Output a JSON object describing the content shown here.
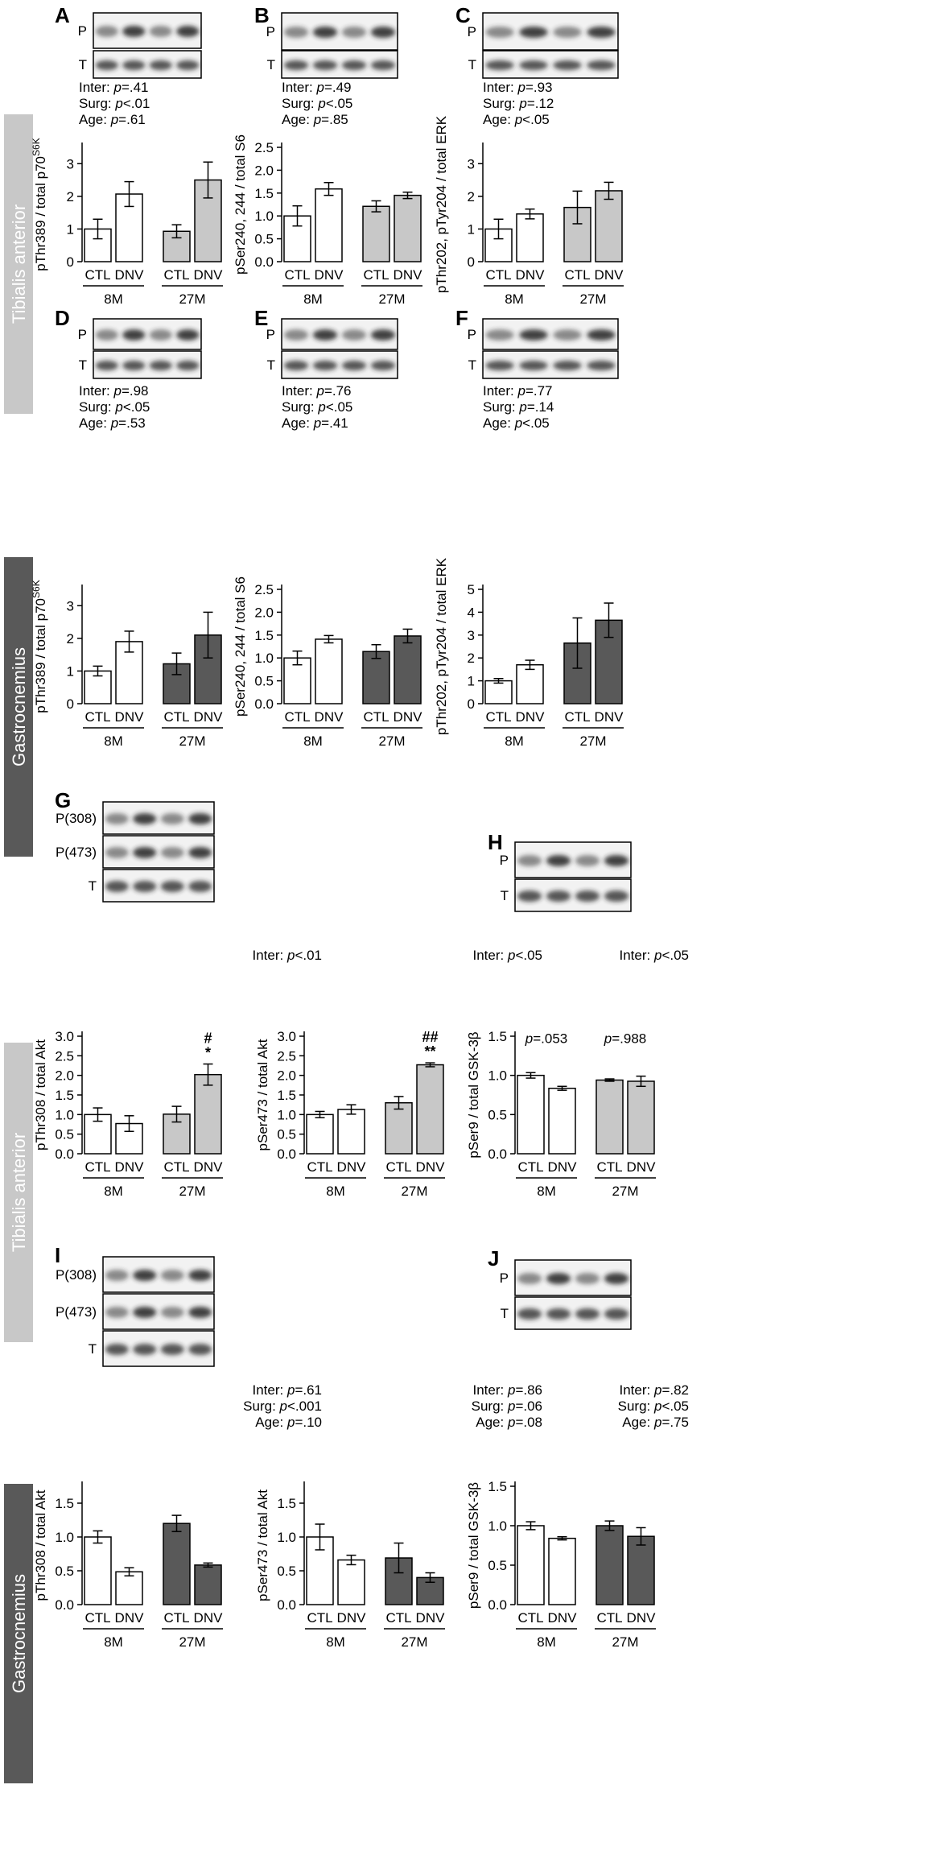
{
  "colors": {
    "ctl": "#ffffff",
    "ta_dnv_27": "#c8c8c8",
    "gas_dnv_27": "#595959",
    "ta_side": "#c8c8c8",
    "gas_side": "#595959"
  },
  "side_labels": {
    "ta_1": "Tibialis anterior",
    "gas_1": "Gastrocnemius",
    "ta_2": "Tibialis anterior",
    "gas_2": "Gastrocnemius"
  },
  "chart_data": [
    {
      "id": "A",
      "panel": "A",
      "type": "bar",
      "blot_labels": [
        "P",
        "T"
      ],
      "stats": [
        [
          "Inter: ",
          "p",
          "=.41"
        ],
        [
          "Surg: ",
          "p",
          "<.01"
        ],
        [
          "Age: ",
          "p",
          "=.61"
        ]
      ],
      "ylabel": "pThr389 / total p70",
      "ylabel_sup": "S6K",
      "ylim": [
        0,
        3.5
      ],
      "yticks": [
        "0",
        "1",
        "2",
        "3"
      ],
      "categories": [
        "CTL",
        "DNV",
        "CTL",
        "DNV"
      ],
      "groups": [
        "8M",
        "27M"
      ],
      "values": [
        1.0,
        2.07,
        0.93,
        2.5
      ],
      "errors": [
        0.3,
        0.38,
        0.2,
        0.55
      ],
      "annotations": [
        "",
        "",
        "",
        ""
      ]
    },
    {
      "id": "B",
      "panel": "B",
      "type": "bar",
      "blot_labels": [
        "P",
        "T"
      ],
      "stats": [
        [
          "Inter: ",
          "p",
          "=.49"
        ],
        [
          "Surg: ",
          "p",
          "<.05"
        ],
        [
          "Age: ",
          "p",
          "=.85"
        ]
      ],
      "ylabel": "pSer240, 244 / total S6",
      "ylabel_sup": "",
      "ylim": [
        0,
        2.5
      ],
      "yticks": [
        "0.0",
        "0.5",
        "1.0",
        "1.5",
        "2.0",
        "2.5"
      ],
      "categories": [
        "CTL",
        "DNV",
        "CTL",
        "DNV"
      ],
      "groups": [
        "8M",
        "27M"
      ],
      "values": [
        1.0,
        1.59,
        1.21,
        1.45
      ],
      "errors": [
        0.22,
        0.14,
        0.12,
        0.07
      ],
      "annotations": [
        "",
        "",
        "",
        ""
      ]
    },
    {
      "id": "C",
      "panel": "C",
      "type": "bar",
      "blot_labels": [
        "P",
        "T"
      ],
      "stats": [
        [
          "Inter: ",
          "p",
          "=.93"
        ],
        [
          "Surg: ",
          "p",
          "=.12"
        ],
        [
          "Age: ",
          "p",
          "<.05"
        ]
      ],
      "ylabel": "pThr202, pTyr204 / total ERK",
      "ylabel_sup": "",
      "ylim": [
        0,
        3.5
      ],
      "yticks": [
        "0",
        "1",
        "2",
        "3"
      ],
      "categories": [
        "CTL",
        "DNV",
        "CTL",
        "DNV"
      ],
      "groups": [
        "8M",
        "27M"
      ],
      "values": [
        1.0,
        1.46,
        1.66,
        2.17
      ],
      "errors": [
        0.3,
        0.15,
        0.5,
        0.26
      ],
      "annotations": [
        "",
        "",
        "",
        ""
      ]
    },
    {
      "id": "D",
      "panel": "D",
      "type": "bar",
      "blot_labels": [
        "P",
        "T"
      ],
      "stats": [
        [
          "Inter: ",
          "p",
          "=.98"
        ],
        [
          "Surg: ",
          "p",
          "<.05"
        ],
        [
          "Age: ",
          "p",
          "=.53"
        ]
      ],
      "ylabel": "pThr389 / total p70",
      "ylabel_sup": "S6K",
      "ylim": [
        0,
        3.5
      ],
      "yticks": [
        "0",
        "1",
        "2",
        "3"
      ],
      "categories": [
        "CTL",
        "DNV",
        "CTL",
        "DNV"
      ],
      "groups": [
        "8M",
        "27M"
      ],
      "values": [
        1.0,
        1.9,
        1.22,
        2.1
      ],
      "errors": [
        0.15,
        0.32,
        0.33,
        0.7
      ],
      "annotations": [
        "",
        "",
        "",
        ""
      ]
    },
    {
      "id": "E",
      "panel": "E",
      "type": "bar",
      "blot_labels": [
        "P",
        "T"
      ],
      "stats": [
        [
          "Inter: ",
          "p",
          "=.76"
        ],
        [
          "Surg: ",
          "p",
          "<.05"
        ],
        [
          "Age: ",
          "p",
          "=.41"
        ]
      ],
      "ylabel": "pSer240, 244 / total S6",
      "ylabel_sup": "",
      "ylim": [
        0,
        2.5
      ],
      "yticks": [
        "0.0",
        "0.5",
        "1.0",
        "1.5",
        "2.0",
        "2.5"
      ],
      "categories": [
        "CTL",
        "DNV",
        "CTL",
        "DNV"
      ],
      "groups": [
        "8M",
        "27M"
      ],
      "values": [
        1.0,
        1.41,
        1.14,
        1.48
      ],
      "errors": [
        0.15,
        0.08,
        0.15,
        0.15
      ],
      "annotations": [
        "",
        "",
        "",
        ""
      ]
    },
    {
      "id": "F",
      "panel": "F",
      "type": "bar",
      "blot_labels": [
        "P",
        "T"
      ],
      "stats": [
        [
          "Inter: ",
          "p",
          "=.77"
        ],
        [
          "Surg: ",
          "p",
          "=.14"
        ],
        [
          "Age: ",
          "p",
          "<.05"
        ]
      ],
      "ylabel": "pThr202, pTyr204 / total ERK",
      "ylabel_sup": "",
      "ylim": [
        0,
        5
      ],
      "yticks": [
        "0",
        "1",
        "2",
        "3",
        "4",
        "5"
      ],
      "categories": [
        "CTL",
        "DNV",
        "CTL",
        "DNV"
      ],
      "groups": [
        "8M",
        "27M"
      ],
      "values": [
        1.0,
        1.7,
        2.65,
        3.65
      ],
      "errors": [
        0.1,
        0.2,
        1.1,
        0.75
      ],
      "annotations": [
        "",
        "",
        "",
        ""
      ]
    },
    {
      "id": "G1",
      "panel": "G",
      "type": "bar",
      "blot_labels": [
        "P(308)",
        "P(473)",
        "T"
      ],
      "stats": [
        [
          "Inter: ",
          "p",
          "<.01"
        ]
      ],
      "ylabel": "pThr308 / total Akt",
      "ylabel_sup": "",
      "ylim": [
        0,
        3.0
      ],
      "yticks": [
        "0.0",
        "0.5",
        "1.0",
        "1.5",
        "2.0",
        "2.5",
        "3.0"
      ],
      "categories": [
        "CTL",
        "DNV",
        "CTL",
        "DNV"
      ],
      "groups": [
        "8M",
        "27M"
      ],
      "values": [
        1.0,
        0.77,
        1.01,
        2.02
      ],
      "errors": [
        0.17,
        0.2,
        0.2,
        0.27
      ],
      "annotations": [
        "",
        "",
        "",
        "#|*"
      ]
    },
    {
      "id": "G2",
      "panel": "",
      "type": "bar",
      "blot_labels": [],
      "stats": [
        [
          "Inter: ",
          "p",
          "<.05"
        ]
      ],
      "ylabel": "pSer473 / total Akt",
      "ylabel_sup": "",
      "ylim": [
        0,
        3.0
      ],
      "yticks": [
        "0.0",
        "0.5",
        "1.0",
        "1.5",
        "2.0",
        "2.5",
        "3.0"
      ],
      "categories": [
        "CTL",
        "DNV",
        "CTL",
        "DNV"
      ],
      "groups": [
        "8M",
        "27M"
      ],
      "values": [
        1.0,
        1.13,
        1.3,
        2.27
      ],
      "errors": [
        0.08,
        0.12,
        0.16,
        0.05
      ],
      "annotations": [
        "",
        "",
        "",
        "##|**"
      ]
    },
    {
      "id": "H",
      "panel": "H",
      "type": "bar",
      "blot_labels": [
        "P",
        "T"
      ],
      "stats": [
        [
          "Inter: ",
          "p",
          "<.05"
        ]
      ],
      "ylabel": "pSer9 / total GSK-3β",
      "ylabel_sup": "",
      "ylim": [
        0,
        1.5
      ],
      "yticks": [
        "0.0",
        "0.5",
        "1.0",
        "1.5"
      ],
      "categories": [
        "CTL",
        "DNV",
        "CTL",
        "DNV"
      ],
      "groups": [
        "8M",
        "27M"
      ],
      "values": [
        1.0,
        0.835,
        0.94,
        0.925
      ],
      "errors": [
        0.035,
        0.025,
        0.015,
        0.065
      ],
      "annotations": [],
      "pair_annotations": [
        [
          "p",
          "=.053"
        ],
        [
          "p",
          "=.988"
        ]
      ]
    },
    {
      "id": "I1",
      "panel": "I",
      "type": "bar",
      "blot_labels": [
        "P(308)",
        "P(473)",
        "T"
      ],
      "stats": [
        [
          "Inter: ",
          "p",
          "=.61"
        ],
        [
          "Surg: ",
          "p",
          "<.001"
        ],
        [
          "Age: ",
          "p",
          "=.10"
        ]
      ],
      "ylabel": "pThr308 / total Akt",
      "ylabel_sup": "",
      "ylim": [
        0,
        1.75
      ],
      "yticks": [
        "0.0",
        "0.5",
        "1.0",
        "1.5"
      ],
      "categories": [
        "CTL",
        "DNV",
        "CTL",
        "DNV"
      ],
      "groups": [
        "8M",
        "27M"
      ],
      "values": [
        1.0,
        0.485,
        1.2,
        0.585
      ],
      "errors": [
        0.09,
        0.06,
        0.12,
        0.03
      ],
      "annotations": [
        "",
        "",
        "",
        ""
      ]
    },
    {
      "id": "I2",
      "panel": "",
      "type": "bar",
      "blot_labels": [],
      "stats": [
        [
          "Inter: ",
          "p",
          "=.86"
        ],
        [
          "Surg: ",
          "p",
          "=.06"
        ],
        [
          "Age: ",
          "p",
          "=.08"
        ]
      ],
      "ylabel": "pSer473 / total Akt",
      "ylabel_sup": "",
      "ylim": [
        0,
        1.75
      ],
      "yticks": [
        "0.0",
        "0.5",
        "1.0",
        "1.5"
      ],
      "categories": [
        "CTL",
        "DNV",
        "CTL",
        "DNV"
      ],
      "groups": [
        "8M",
        "27M"
      ],
      "values": [
        1.0,
        0.66,
        0.69,
        0.4
      ],
      "errors": [
        0.19,
        0.07,
        0.22,
        0.07
      ],
      "annotations": [
        "",
        "",
        "",
        ""
      ]
    },
    {
      "id": "J",
      "panel": "J",
      "type": "bar",
      "blot_labels": [
        "P",
        "T"
      ],
      "stats": [
        [
          "Inter: ",
          "p",
          "=.82"
        ],
        [
          "Surg: ",
          "p",
          "<.05"
        ],
        [
          "Age: ",
          "p",
          "=.75"
        ]
      ],
      "ylabel": "pSer9 / total GSK-3β",
      "ylabel_sup": "",
      "ylim": [
        0,
        1.5
      ],
      "yticks": [
        "0.0",
        "0.5",
        "1.0",
        "1.5"
      ],
      "categories": [
        "CTL",
        "DNV",
        "CTL",
        "DNV"
      ],
      "groups": [
        "8M",
        "27M"
      ],
      "values": [
        1.0,
        0.84,
        1.0,
        0.865
      ],
      "errors": [
        0.05,
        0.02,
        0.06,
        0.11
      ],
      "annotations": [
        "",
        "",
        "",
        ""
      ]
    }
  ]
}
